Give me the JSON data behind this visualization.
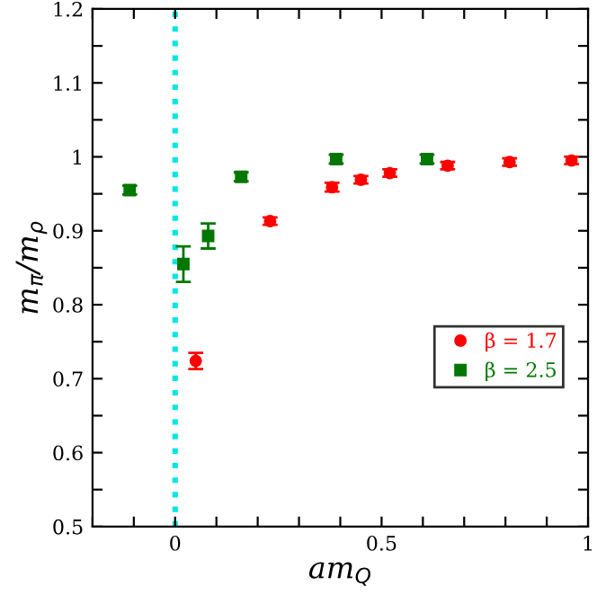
{
  "chart_data": {
    "type": "scatter",
    "xlabel": "am$_{Q}$",
    "ylabel": "m$_{π}$/m$_{ρ}$",
    "xlim": [
      -0.2,
      1
    ],
    "ylim": [
      0.5,
      1.2
    ],
    "xticks": [
      {
        "value": -0.2,
        "label": null
      },
      {
        "value": -0.1,
        "label": null
      },
      {
        "value": 0,
        "label": "0"
      },
      {
        "value": 0.1,
        "label": null
      },
      {
        "value": 0.2,
        "label": null
      },
      {
        "value": 0.3,
        "label": null
      },
      {
        "value": 0.4,
        "label": null
      },
      {
        "value": 0.5,
        "label": "0.5"
      },
      {
        "value": 0.6,
        "label": null
      },
      {
        "value": 0.7,
        "label": null
      },
      {
        "value": 0.8,
        "label": null
      },
      {
        "value": 0.9,
        "label": null
      },
      {
        "value": 1,
        "label": "1"
      }
    ],
    "yticks": [
      0.5,
      {
        "value": 0.55,
        "label": null
      },
      0.6,
      {
        "value": 0.65,
        "label": null
      },
      0.7,
      {
        "value": 0.75,
        "label": null
      },
      0.8,
      {
        "value": 0.85,
        "label": null
      },
      0.9,
      {
        "value": 0.95,
        "label": null
      },
      1,
      {
        "value": 1.05,
        "label": null
      },
      1.1,
      {
        "value": 1.15,
        "label": null
      },
      1.2
    ],
    "grid": false,
    "legend": "lower right",
    "ref_lines": [
      {
        "axis": "x",
        "value": 0,
        "color": "#00e5e5",
        "line_style": "dotted"
      }
    ],
    "series": [
      {
        "name": "β = 1.7",
        "color": "#ff0000",
        "marker": "circle",
        "x": [
          0.05,
          0.23,
          0.38,
          0.45,
          0.52,
          0.66,
          0.81,
          0.96
        ],
        "values": [
          0.724,
          0.913,
          0.959,
          0.969,
          0.978,
          0.988,
          0.993,
          0.995
        ],
        "errors": [
          0.011,
          0.005,
          0.006,
          0.005,
          0.005,
          0.005,
          0.005,
          0.005
        ]
      },
      {
        "name": "β = 2.5",
        "color": "#007700",
        "marker": "square",
        "x": [
          -0.11,
          0.02,
          0.08,
          0.16,
          0.39,
          0.61
        ],
        "values": [
          0.955,
          0.855,
          0.893,
          0.973,
          0.997,
          0.997
        ],
        "errors": [
          0.006,
          0.024,
          0.017,
          0.006,
          0.006,
          0.006
        ]
      }
    ]
  }
}
